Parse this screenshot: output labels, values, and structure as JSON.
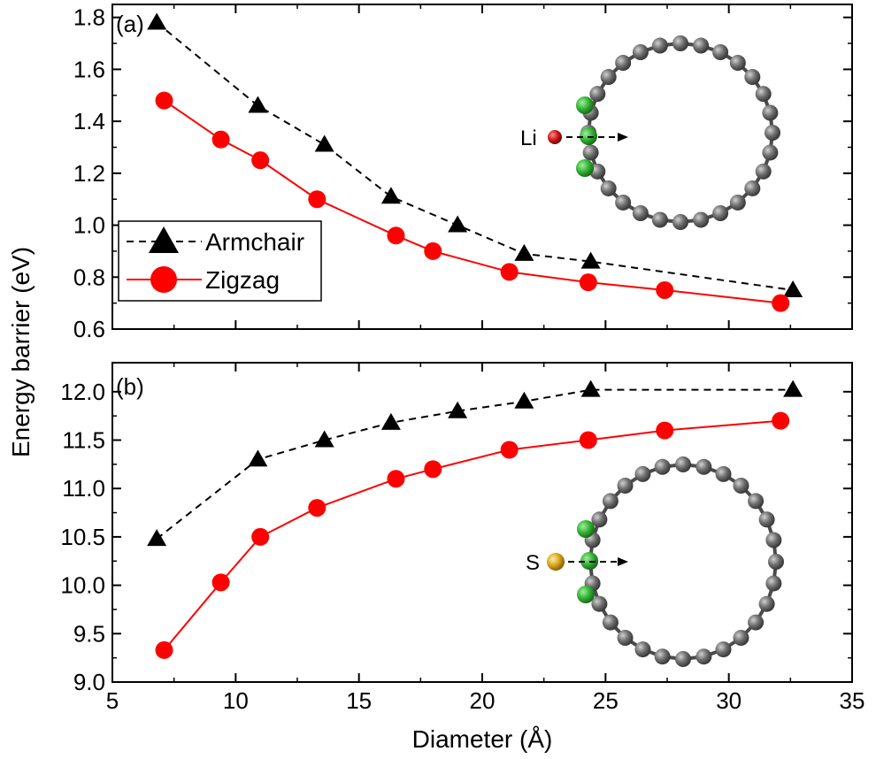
{
  "chart_data": [
    {
      "panel": "(a)",
      "type": "line",
      "xlabel": "Diameter (Å)",
      "ylabel": "Energy barrier (eV)",
      "xlim": [
        5,
        35
      ],
      "ylim": [
        0.6,
        1.85
      ],
      "yticks": [
        0.6,
        0.8,
        1.0,
        1.2,
        1.4,
        1.6,
        1.8
      ],
      "ytick_labels": [
        "0.6",
        "0.8",
        "1.0",
        "1.2",
        "1.4",
        "1.6",
        "1.8"
      ],
      "series": [
        {
          "name": "Armchair",
          "marker": "triangle",
          "line_style": "dashed",
          "color": "#000000",
          "x": [
            6.8,
            10.9,
            13.6,
            16.3,
            19.0,
            21.7,
            24.4,
            32.6
          ],
          "y": [
            1.78,
            1.46,
            1.31,
            1.11,
            1.0,
            0.89,
            0.86,
            0.75
          ]
        },
        {
          "name": "Zigzag",
          "marker": "circle",
          "line_style": "solid",
          "color": "#ff0000",
          "x": [
            7.1,
            9.4,
            11.0,
            13.3,
            16.5,
            18.0,
            21.1,
            24.3,
            27.4,
            32.1
          ],
          "y": [
            1.48,
            1.33,
            1.25,
            1.1,
            0.96,
            0.9,
            0.82,
            0.78,
            0.75,
            0.7
          ]
        }
      ],
      "legend": {
        "position": "center-left",
        "entries": [
          "Armchair",
          "Zigzag"
        ]
      },
      "inset": {
        "atom_label": "Li",
        "atom_color": "#cc1111"
      }
    },
    {
      "panel": "(b)",
      "type": "line",
      "xlabel": "Diameter (Å)",
      "ylabel": "Energy barrier (eV)",
      "xlim": [
        5,
        35
      ],
      "ylim": [
        9.0,
        12.3
      ],
      "yticks": [
        9.0,
        9.5,
        10.0,
        10.5,
        11.0,
        11.5,
        12.0
      ],
      "ytick_labels": [
        "9.0",
        "9.5",
        "10.0",
        "10.5",
        "11.0",
        "11.5",
        "12.0"
      ],
      "xticks": [
        5,
        10,
        15,
        20,
        25,
        30,
        35
      ],
      "xtick_labels": [
        "5",
        "10",
        "15",
        "20",
        "25",
        "30",
        "35"
      ],
      "series": [
        {
          "name": "Armchair",
          "marker": "triangle",
          "line_style": "dashed",
          "color": "#000000",
          "x": [
            6.8,
            10.9,
            13.6,
            16.3,
            19.0,
            21.7,
            24.4,
            32.6
          ],
          "y": [
            10.48,
            11.3,
            11.5,
            11.68,
            11.8,
            11.9,
            12.02,
            12.02
          ]
        },
        {
          "name": "Zigzag",
          "marker": "circle",
          "line_style": "solid",
          "color": "#ff0000",
          "x": [
            7.1,
            9.4,
            11.0,
            13.3,
            16.5,
            18.0,
            21.1,
            24.3,
            27.4,
            32.1
          ],
          "y": [
            9.33,
            10.03,
            10.5,
            10.8,
            11.1,
            11.2,
            11.4,
            11.5,
            11.6,
            11.7
          ]
        }
      ],
      "inset": {
        "atom_label": "S",
        "atom_color": "#d4a017"
      }
    }
  ]
}
